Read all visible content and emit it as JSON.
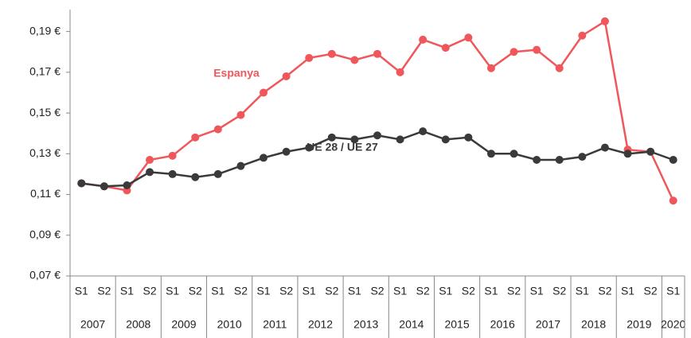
{
  "chart_data": {
    "type": "line",
    "categories": [
      "S1",
      "S2",
      "S1",
      "S2",
      "S1",
      "S2",
      "S1",
      "S2",
      "S1",
      "S2",
      "S1",
      "S2",
      "S1",
      "S2",
      "S1",
      "S2",
      "S1",
      "S2",
      "S1",
      "S2",
      "S1",
      "S2",
      "S1",
      "S2",
      "S1",
      "S2",
      "S1"
    ],
    "years": [
      "2007",
      "2008",
      "2009",
      "2010",
      "2011",
      "2012",
      "2013",
      "2014",
      "2015",
      "2016",
      "2017",
      "2018",
      "2019",
      "2020"
    ],
    "series": [
      {
        "name": "Espanya",
        "color": "#f0575a",
        "values": [
          0.1155,
          0.114,
          0.112,
          0.127,
          0.129,
          0.138,
          0.142,
          0.149,
          0.16,
          0.168,
          0.177,
          0.179,
          0.176,
          0.179,
          0.17,
          0.186,
          0.182,
          0.187,
          0.172,
          0.18,
          0.181,
          0.172,
          0.188,
          0.195,
          0.132,
          0.131,
          0.107
        ]
      },
      {
        "name": "UE 28 / UE 27",
        "color": "#3a3a3a",
        "values": [
          0.1155,
          0.114,
          0.1145,
          0.121,
          0.12,
          0.1185,
          0.12,
          0.124,
          0.128,
          0.131,
          0.133,
          0.138,
          0.137,
          0.139,
          0.137,
          0.141,
          0.137,
          0.138,
          0.13,
          0.13,
          0.127,
          0.127,
          0.1285,
          0.133,
          0.13,
          0.131,
          0.127
        ]
      }
    ],
    "ylim": [
      0.07,
      0.2
    ],
    "yticks": [
      {
        "value": 0.07,
        "label": "0,07 €"
      },
      {
        "value": 0.09,
        "label": "0,09 €"
      },
      {
        "value": 0.11,
        "label": "0,11 €"
      },
      {
        "value": 0.13,
        "label": "0,13 €"
      },
      {
        "value": 0.15,
        "label": "0,15 €"
      },
      {
        "value": 0.17,
        "label": "0,17 €"
      },
      {
        "value": 0.19,
        "label": "0,19 €"
      }
    ],
    "grid": false
  }
}
